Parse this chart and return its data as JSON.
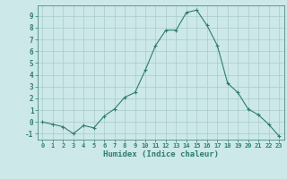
{
  "x": [
    0,
    1,
    2,
    3,
    4,
    5,
    6,
    7,
    8,
    9,
    10,
    11,
    12,
    13,
    14,
    15,
    16,
    17,
    18,
    19,
    20,
    21,
    22,
    23
  ],
  "y": [
    0,
    -0.2,
    -0.4,
    -1.0,
    -0.3,
    -0.5,
    0.5,
    1.1,
    2.1,
    2.5,
    4.4,
    6.5,
    7.8,
    7.8,
    9.3,
    9.5,
    8.2,
    6.5,
    3.3,
    2.5,
    1.1,
    0.6,
    -0.2,
    -1.2
  ],
  "line_color": "#2e7d6e",
  "marker": "+",
  "bg_color": "#cce8e8",
  "grid_color": "#aacaca",
  "tick_color": "#2e7d6e",
  "label_color": "#2e7d6e",
  "xlabel": "Humidex (Indice chaleur)",
  "xlim": [
    -0.5,
    23.5
  ],
  "ylim": [
    -1.5,
    9.9
  ],
  "yticks": [
    -1,
    0,
    1,
    2,
    3,
    4,
    5,
    6,
    7,
    8,
    9
  ],
  "xticks": [
    0,
    1,
    2,
    3,
    4,
    5,
    6,
    7,
    8,
    9,
    10,
    11,
    12,
    13,
    14,
    15,
    16,
    17,
    18,
    19,
    20,
    21,
    22,
    23
  ]
}
